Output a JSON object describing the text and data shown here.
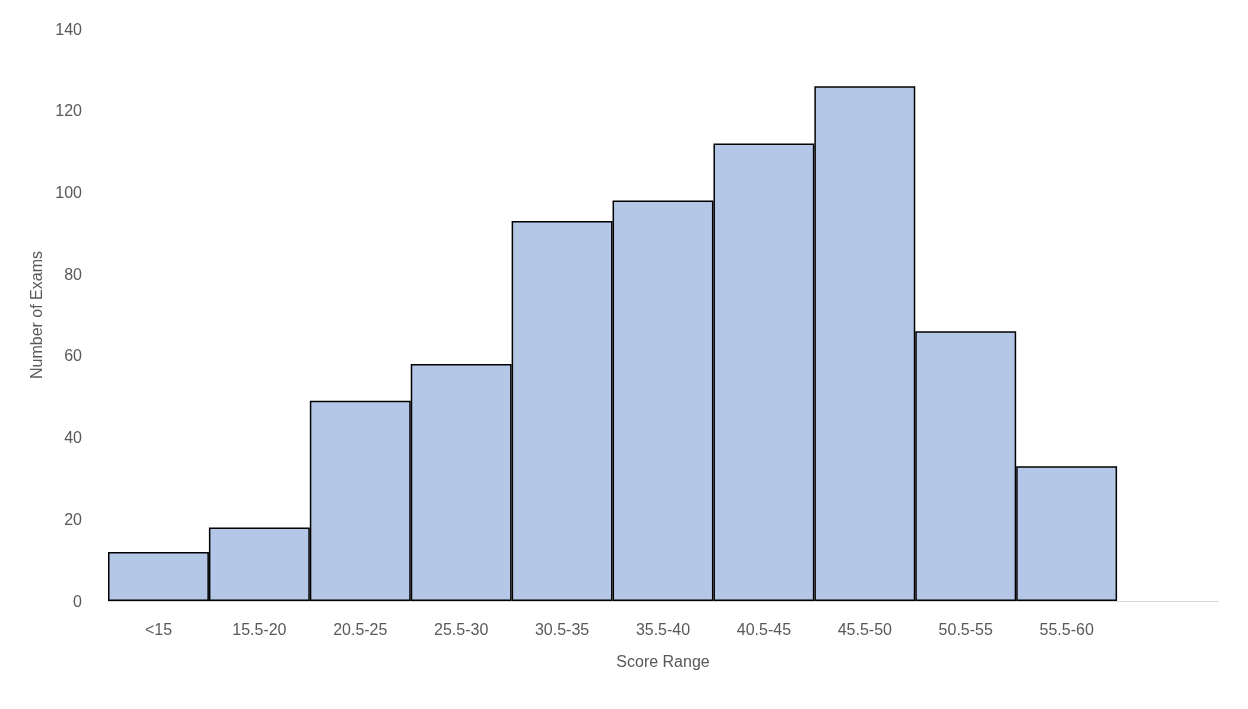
{
  "chart_data": {
    "type": "bar",
    "xlabel": "Score Range",
    "ylabel": "Number of Exams",
    "categories": [
      "<15",
      "15.5-20",
      "20.5-25",
      "25.5-30",
      "30.5-35",
      "35.5-40",
      "40.5-45",
      "45.5-50",
      "50.5-55",
      "55.5-60",
      null
    ],
    "series": [
      {
        "color": "#b4c7e7",
        "values": [
          12,
          18,
          49,
          58,
          93,
          98,
          112,
          126,
          66,
          33,
          null
        ]
      }
    ],
    "ylim": [
      0,
      140
    ],
    "yticks": [
      0,
      20,
      40,
      60,
      80,
      100,
      120,
      140
    ],
    "grid": false
  }
}
